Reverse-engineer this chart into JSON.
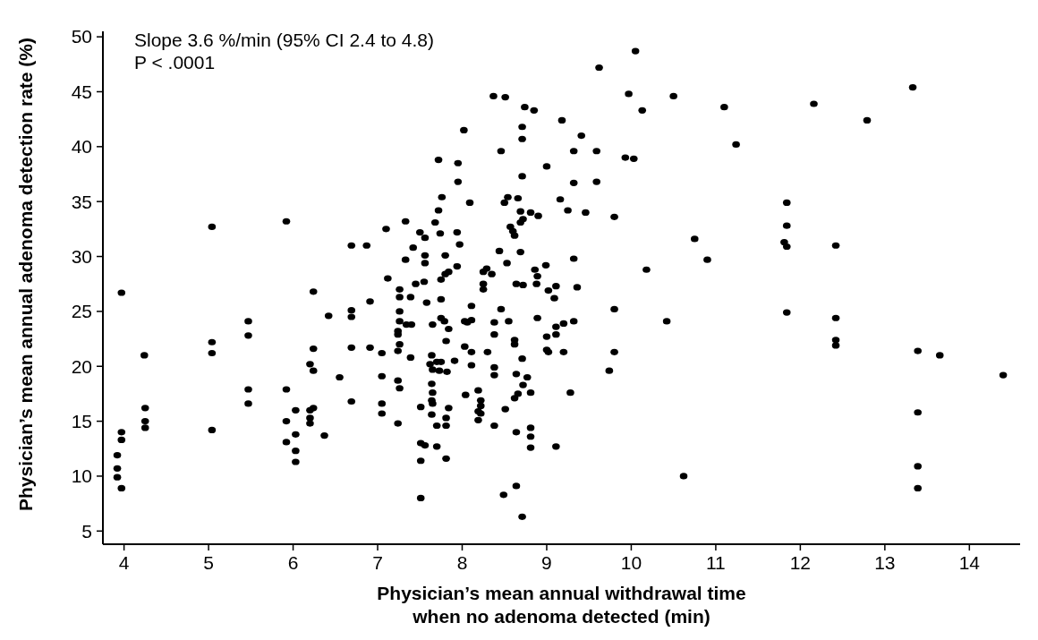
{
  "chart_data": {
    "type": "scatter",
    "xlabel": "Physician’s mean annual withdrawal time\nwhen no adenoma detected (min)",
    "ylabel": "Physician’s mean annual adenoma detection rate (%)",
    "annotations": [
      "Slope 3.6 %/min (95% CI 2.4 to 4.8)",
      "P < .0001"
    ],
    "xlim": [
      3.75,
      14.6
    ],
    "ylim": [
      3.8,
      50.5
    ],
    "xticks": [
      4,
      5,
      6,
      7,
      8,
      9,
      10,
      11,
      12,
      13,
      14
    ],
    "yticks": [
      5,
      10,
      15,
      20,
      25,
      30,
      35,
      40,
      45,
      50
    ],
    "marker": "circle",
    "series": [
      {
        "color": "#000000",
        "x": [
          3.97,
          4.24,
          4.25,
          4.25,
          4.25,
          3.97,
          3.97,
          3.92,
          3.92,
          3.92,
          3.97,
          5.04,
          5.04,
          5.04,
          5.04,
          5.47,
          5.47,
          5.47,
          5.47,
          5.92,
          5.92,
          5.92,
          5.92,
          6.03,
          6.03,
          6.03,
          6.03,
          6.2,
          6.24,
          6.24,
          6.24,
          6.2,
          6.24,
          6.2,
          6.2,
          6.37,
          6.42,
          6.55,
          6.69,
          6.87,
          6.69,
          6.69,
          6.69,
          6.69,
          6.91,
          6.91,
          8.37,
          8.51,
          8.74,
          8.85,
          8.02,
          8.71,
          8.71,
          8.46,
          9.0,
          7.72,
          7.95,
          7.95,
          8.71,
          7.76,
          8.09,
          8.54,
          8.5,
          8.66,
          7.72,
          7.33,
          7.1,
          7.68,
          8.69,
          8.81,
          8.9,
          8.69,
          8.72,
          7.5,
          7.56,
          7.74,
          7.94,
          8.57,
          8.6,
          8.62,
          7.97,
          7.42,
          7.56,
          7.8,
          8.44,
          8.69,
          7.33,
          7.56,
          8.53,
          8.99,
          7.94,
          7.12,
          7.45,
          7.55,
          7.75,
          7.8,
          7.84,
          8.25,
          8.29,
          8.35,
          8.25,
          8.25,
          8.64,
          8.72,
          8.86,
          8.89,
          8.88,
          7.26,
          7.26,
          7.39,
          7.58,
          7.75,
          8.11,
          8.46,
          7.26,
          8.89,
          7.26,
          7.34,
          7.4,
          7.65,
          7.75,
          7.79,
          7.84,
          8.03,
          8.06,
          8.11,
          8.38,
          8.55,
          8.38,
          7.24,
          7.24,
          7.26,
          7.24,
          7.81,
          8.62,
          8.62,
          7.05,
          8.03,
          8.11,
          8.3,
          9.0,
          9.0,
          7.39,
          7.64,
          7.62,
          7.7,
          7.75,
          7.65,
          7.73,
          7.82,
          7.91,
          8.71,
          8.11,
          7.05,
          7.24,
          7.26,
          8.38,
          8.38,
          8.64,
          8.77,
          8.72,
          8.81,
          8.66,
          8.62,
          7.64,
          7.65,
          7.64,
          7.65,
          8.04,
          8.19,
          8.22,
          8.22,
          8.19,
          8.22,
          8.19,
          7.05,
          7.05,
          7.51,
          7.84,
          7.81,
          7.81,
          7.7,
          7.64,
          7.24,
          8.51,
          8.38,
          8.81,
          8.81,
          8.81,
          8.64,
          7.51,
          7.56,
          7.7,
          7.81,
          7.51,
          7.51,
          8.49,
          8.64,
          8.71,
          10.05,
          9.62,
          9.97,
          10.5,
          10.13,
          11.1,
          9.18,
          9.41,
          9.32,
          9.59,
          9.93,
          10.03,
          9.32,
          9.59,
          9.16,
          9.25,
          9.46,
          9.8,
          10.75,
          10.9,
          9.32,
          10.18,
          9.02,
          9.09,
          9.11,
          9.36,
          9.8,
          10.42,
          9.32,
          9.2,
          9.11,
          9.11,
          9.02,
          9.2,
          9.8,
          9.74,
          9.28,
          9.11,
          10.62,
          11.24,
          12.16,
          12.79,
          13.33,
          11.84,
          11.84,
          11.81,
          11.84,
          12.42,
          11.84,
          12.42,
          12.42,
          12.42,
          13.39,
          13.65,
          14.4,
          13.39,
          13.39,
          13.39
        ],
        "values": [
          26.7,
          21.0,
          16.2,
          15.0,
          14.4,
          14.0,
          13.3,
          11.9,
          10.7,
          9.9,
          8.9,
          32.7,
          22.2,
          21.2,
          14.2,
          24.1,
          22.8,
          17.9,
          16.6,
          33.2,
          17.9,
          15.0,
          13.1,
          16.0,
          13.8,
          12.3,
          11.3,
          20.2,
          19.6,
          26.8,
          21.6,
          16.0,
          16.2,
          15.3,
          14.8,
          13.7,
          24.6,
          19.0,
          31.0,
          31.0,
          25.1,
          24.5,
          21.7,
          16.8,
          25.9,
          21.7,
          44.6,
          44.5,
          43.6,
          43.3,
          41.5,
          41.8,
          40.7,
          39.6,
          38.2,
          38.8,
          38.5,
          36.8,
          37.3,
          35.4,
          34.9,
          35.4,
          34.9,
          35.3,
          34.2,
          33.2,
          32.5,
          33.1,
          34.1,
          34.0,
          33.7,
          33.1,
          33.4,
          32.2,
          31.7,
          32.1,
          32.2,
          32.7,
          32.3,
          31.9,
          31.1,
          30.8,
          30.1,
          30.1,
          30.5,
          30.4,
          29.7,
          29.4,
          29.4,
          29.2,
          29.1,
          28.0,
          27.5,
          27.7,
          27.9,
          28.4,
          28.6,
          28.6,
          28.9,
          28.4,
          27.5,
          27.0,
          27.5,
          27.4,
          28.8,
          28.2,
          27.5,
          27.0,
          26.3,
          26.3,
          25.8,
          26.1,
          25.5,
          25.2,
          25.0,
          24.4,
          24.1,
          23.8,
          23.8,
          23.8,
          24.4,
          24.1,
          23.4,
          24.1,
          24.0,
          24.2,
          24.0,
          24.1,
          22.9,
          23.2,
          22.9,
          22.0,
          21.4,
          22.3,
          22.4,
          22.0,
          21.2,
          21.8,
          21.3,
          21.3,
          22.7,
          21.5,
          20.8,
          21.0,
          20.2,
          20.4,
          20.4,
          19.7,
          19.6,
          19.5,
          20.5,
          20.7,
          20.1,
          19.1,
          18.7,
          18.0,
          19.9,
          19.2,
          19.3,
          19.0,
          18.3,
          17.6,
          17.5,
          17.1,
          18.4,
          17.6,
          16.9,
          16.6,
          17.4,
          17.8,
          16.9,
          16.4,
          15.9,
          15.7,
          15.1,
          16.6,
          15.7,
          16.3,
          16.2,
          15.3,
          14.6,
          14.6,
          15.6,
          14.8,
          16.1,
          14.6,
          14.4,
          13.6,
          12.6,
          14.0,
          13.0,
          12.8,
          12.7,
          11.6,
          11.4,
          8.0,
          8.3,
          9.1,
          6.3,
          48.7,
          47.2,
          44.8,
          44.6,
          43.3,
          43.6,
          42.4,
          41.0,
          39.6,
          39.6,
          39.0,
          38.9,
          36.7,
          36.8,
          35.2,
          34.2,
          34.0,
          33.6,
          31.6,
          29.7,
          29.8,
          28.8,
          26.9,
          26.2,
          27.3,
          27.2,
          25.2,
          24.1,
          24.1,
          23.9,
          23.6,
          22.9,
          21.3,
          21.3,
          21.3,
          19.6,
          17.6,
          12.7,
          10.0,
          40.2,
          43.9,
          42.4,
          45.4,
          34.9,
          32.8,
          31.3,
          30.9,
          31.0,
          24.9,
          24.4,
          22.4,
          21.9,
          21.4,
          21.0,
          19.2,
          15.8,
          10.9,
          8.9
        ]
      }
    ]
  }
}
